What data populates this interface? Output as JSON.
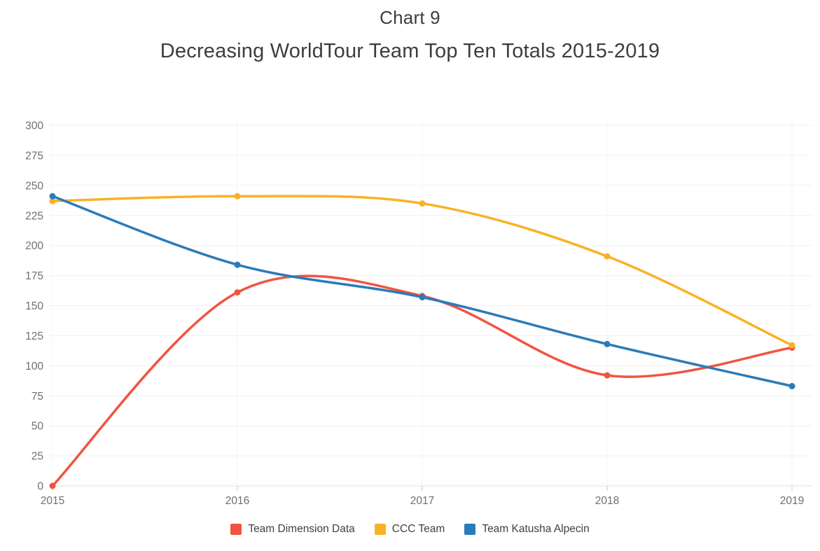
{
  "header": {
    "title": "Chart 9",
    "subtitle": "Decreasing WorldTour Team Top Ten Totals 2015-2019"
  },
  "chart_data": {
    "type": "line",
    "categories": [
      "2015",
      "2016",
      "2017",
      "2018",
      "2019"
    ],
    "series": [
      {
        "name": "Team Dimension Data",
        "color": "#F05541",
        "values": [
          0,
          161,
          158,
          92,
          115
        ]
      },
      {
        "name": "CCC Team",
        "color": "#F9B226",
        "values": [
          237,
          241,
          235,
          191,
          117
        ]
      },
      {
        "name": "Team Katusha Alpecin",
        "color": "#2B7BB9",
        "values": [
          241,
          184,
          157,
          118,
          83
        ]
      }
    ],
    "title": "Chart 9",
    "subtitle": "Decreasing WorldTour Team Top Ten Totals 2015-2019",
    "xlabel": "",
    "ylabel": "",
    "ylim": [
      0,
      300
    ],
    "ytick_step": 25,
    "grid": true,
    "legend_position": "bottom",
    "curve": "smooth"
  },
  "colors": {
    "axis_label": "#6f6f6f",
    "gridline": "#f0f0f0",
    "zero_line": "#e2e2e2",
    "vertical_gridline": "#f4f4f4",
    "tick_mark": "#c9c9c9",
    "title_text": "#3d3d3d",
    "legend_text": "#3f3f3f"
  }
}
